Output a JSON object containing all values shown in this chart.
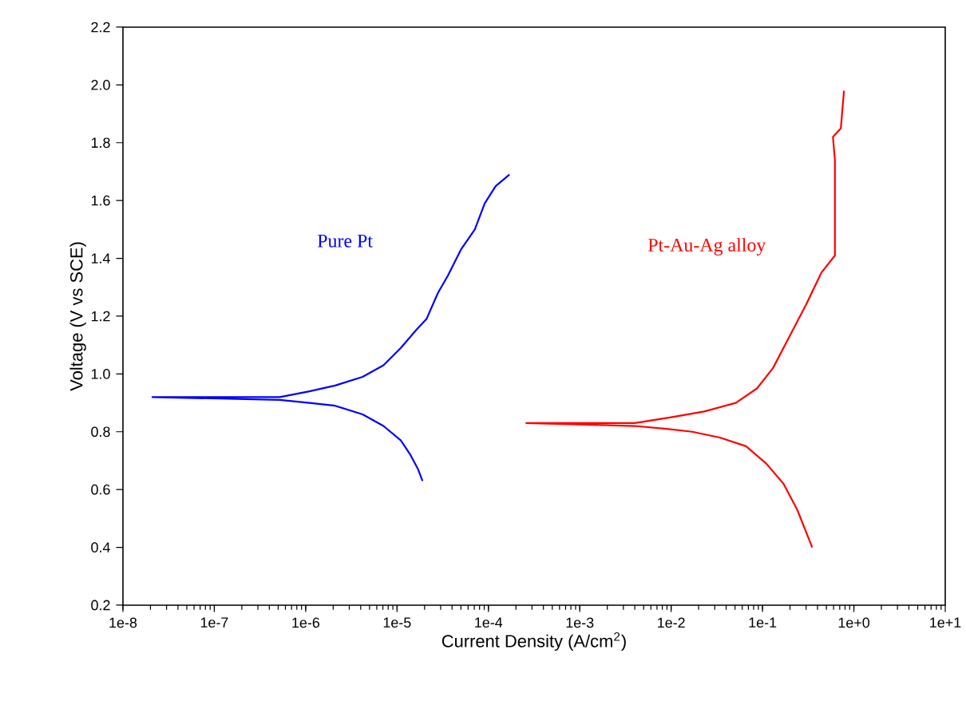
{
  "chart_data": {
    "type": "line",
    "xlabel": "Current Density (A/cm$^{2}$)",
    "ylabel": "Voltage (V vs SCE)",
    "log": "x",
    "xlim": [
      1e-08,
      10
    ],
    "ylim": [
      0.2,
      2.2
    ],
    "xticks": [
      {
        "value": 1e-08,
        "label": "1e-8"
      },
      {
        "value": 1e-07,
        "label": "1e-7"
      },
      {
        "value": 1e-06,
        "label": "1e-6"
      },
      {
        "value": 1e-05,
        "label": "1e-5"
      },
      {
        "value": 0.0001,
        "label": "1e-4"
      },
      {
        "value": 0.001,
        "label": "1e-3"
      },
      {
        "value": 0.01,
        "label": "1e-2"
      },
      {
        "value": 0.1,
        "label": "1e-1"
      },
      {
        "value": 1,
        "label": "1e+0"
      },
      {
        "value": 10,
        "label": "1e+1"
      }
    ],
    "yticks": [
      0.2,
      0.4,
      0.6,
      0.8,
      {
        "value": 1,
        "label": "1.0"
      },
      1.2,
      1.4,
      1.6,
      1.8,
      {
        "value": 2,
        "label": "2.0"
      },
      2.2
    ],
    "grid": false,
    "legend": false,
    "marker": "none",
    "line_style": "solid",
    "series": [
      {
        "name": "Pure Pt",
        "color": "#0000ff",
        "x": [
          1.9e-05,
          1.7e-05,
          1.4e-05,
          1.1e-05,
          7.1e-06,
          4.2e-06,
          2.1e-06,
          1.1e-06,
          5.2e-07,
          2.1e-08,
          5.2e-07,
          1.1e-06,
          2.1e-06,
          4.2e-06,
          7.1e-06,
          1.1e-05,
          1.6e-05,
          2.1e-05,
          2.8e-05,
          3.6e-05,
          5e-05,
          7.1e-05,
          9.1e-05,
          0.00012,
          0.00017
        ],
        "values": [
          0.63,
          0.67,
          0.72,
          0.77,
          0.82,
          0.86,
          0.89,
          0.9,
          0.91,
          0.92,
          0.92,
          0.94,
          0.96,
          0.99,
          1.03,
          1.09,
          1.15,
          1.19,
          1.28,
          1.34,
          1.43,
          1.5,
          1.59,
          1.65,
          1.69
        ]
      },
      {
        "name": "Pt-Au-Ag alloy",
        "color": "#ff0000",
        "x": [
          0.35,
          0.24,
          0.17,
          0.11,
          0.066,
          0.034,
          0.017,
          0.0089,
          0.004,
          0.00026,
          0.004,
          0.01,
          0.023,
          0.051,
          0.087,
          0.13,
          0.19,
          0.3,
          0.44,
          0.62,
          0.62,
          0.59,
          0.72,
          0.76,
          0.78
        ],
        "values": [
          0.4,
          0.53,
          0.62,
          0.69,
          0.75,
          0.78,
          0.8,
          0.81,
          0.82,
          0.83,
          0.83,
          0.85,
          0.87,
          0.9,
          0.95,
          1.02,
          1.12,
          1.24,
          1.35,
          1.41,
          1.74,
          1.82,
          1.85,
          1.94,
          1.98
        ]
      }
    ]
  }
}
